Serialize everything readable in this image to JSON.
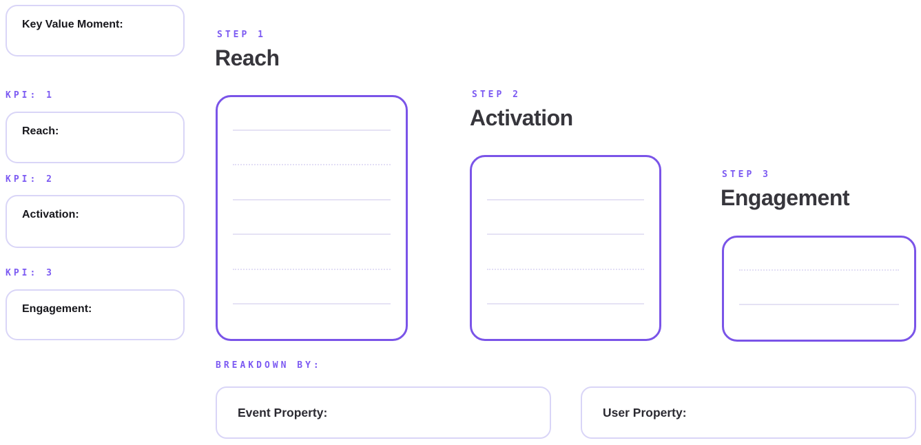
{
  "palette": {
    "accent_purple_border": "#7a54e8",
    "accent_purple_text": "#7c5af2",
    "soft_lavender_border": "#d9d5f7",
    "heading_text": "#37363c",
    "label_text": "#17171c",
    "note_line_solid": "#e5e2f4",
    "note_line_dotted": "#e2def5"
  },
  "left_panel": {
    "key_value_box": {
      "label": "Key Value Moment:"
    },
    "kpis": [
      {
        "kpi_label": "KPI: 1",
        "box_label": "Reach:"
      },
      {
        "kpi_label": "KPI: 2",
        "box_label": "Activation:"
      },
      {
        "kpi_label": "KPI: 3",
        "box_label": "Engagement:"
      }
    ]
  },
  "steps": [
    {
      "step_label": "STEP 1",
      "title": "Reach",
      "lines": [
        "solid",
        "dotted",
        "solid",
        "solid",
        "dotted",
        "solid"
      ]
    },
    {
      "step_label": "STEP 2",
      "title": "Activation",
      "lines": [
        "solid",
        "solid",
        "dotted",
        "solid"
      ]
    },
    {
      "step_label": "STEP 3",
      "title": "Engagement",
      "lines": [
        "dotted",
        "solid"
      ]
    }
  ],
  "breakdown": {
    "label": "BREAKDOWN BY:",
    "boxes": [
      {
        "label": "Event Property:"
      },
      {
        "label": "User Property:"
      }
    ]
  }
}
